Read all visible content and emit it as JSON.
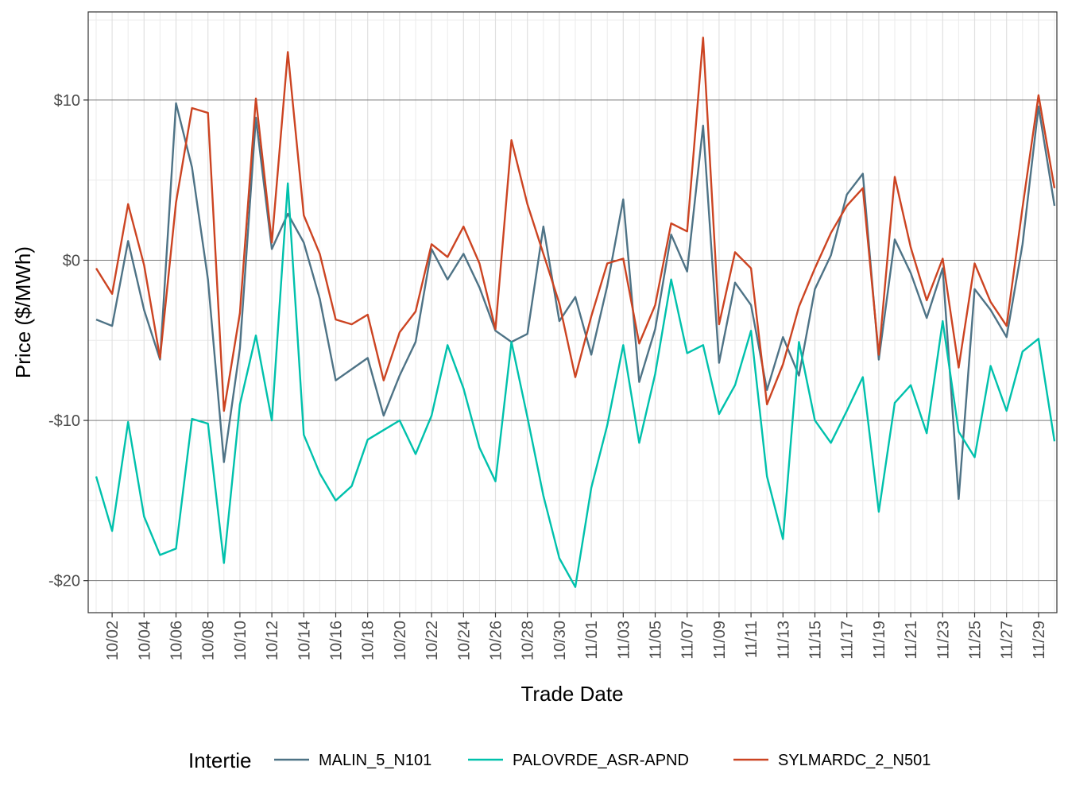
{
  "chart_data": {
    "type": "line",
    "title": "",
    "xlabel": "Trade Date",
    "ylabel": "Price ($/MWh)",
    "ylim": [
      -22,
      15.5
    ],
    "y_ticks": [
      10,
      0,
      -10,
      -20
    ],
    "y_tick_labels": [
      "$10",
      "$0",
      "-$10",
      "-$20"
    ],
    "x_start_day": 1,
    "x_tick_days": [
      2,
      4,
      6,
      8,
      10,
      12,
      14,
      16,
      18,
      20,
      22,
      24,
      26,
      28,
      30,
      32,
      34,
      36,
      38,
      40,
      42,
      44,
      46,
      48,
      50,
      52,
      54,
      56,
      58,
      60
    ],
    "x_tick_labels": [
      "10/02",
      "10/04",
      "10/06",
      "10/08",
      "10/10",
      "10/12",
      "10/14",
      "10/16",
      "10/18",
      "10/20",
      "10/22",
      "10/24",
      "10/26",
      "10/28",
      "10/30",
      "11/01",
      "11/03",
      "11/05",
      "11/07",
      "11/09",
      "11/11",
      "11/13",
      "11/15",
      "11/17",
      "11/19",
      "11/21",
      "11/23",
      "11/25",
      "11/27",
      "11/29"
    ],
    "grid": true,
    "legend": {
      "title": "Intertie",
      "position": "bottom"
    },
    "series": [
      {
        "name": "MALIN_5_N101",
        "color": "#4E7386",
        "values": [
          -3.7,
          -4.1,
          1.2,
          -3.1,
          -6.2,
          9.8,
          5.8,
          -1.2,
          -12.6,
          -5.5,
          8.9,
          0.7,
          2.9,
          1.1,
          -2.4,
          -7.5,
          -6.8,
          -6.1,
          -9.7,
          -7.2,
          -5.1,
          0.7,
          -1.2,
          0.4,
          -1.7,
          -4.4,
          -5.1,
          -4.6,
          2.1,
          -3.8,
          -2.3,
          -5.9,
          -1.6,
          3.8,
          -7.6,
          -4.3,
          1.6,
          -0.7,
          8.4,
          -6.4,
          -1.4,
          -2.8,
          -8.1,
          -4.8,
          -7.2,
          -1.8,
          0.3,
          4.1,
          5.4,
          -6.2,
          1.3,
          -0.8,
          -3.6,
          -0.5,
          -14.9,
          -1.8,
          -3.1,
          -4.8,
          1.0,
          9.6,
          3.4
        ]
      },
      {
        "name": "PALOVRDE_ASR-APND",
        "color": "#00C1AC",
        "values": [
          -13.5,
          -16.9,
          -10.1,
          -16.0,
          -18.4,
          -18.0,
          -9.9,
          -10.2,
          -18.9,
          -9.0,
          -4.7,
          -10.0,
          4.8,
          -10.9,
          -13.3,
          -15.0,
          -14.1,
          -11.2,
          -10.6,
          -10.0,
          -12.1,
          -9.7,
          -5.3,
          -8.0,
          -11.7,
          -13.8,
          -5.1,
          -9.8,
          -14.7,
          -18.6,
          -20.4,
          -14.2,
          -10.3,
          -5.3,
          -11.4,
          -7.1,
          -1.2,
          -5.8,
          -5.3,
          -9.6,
          -7.8,
          -4.4,
          -13.5,
          -17.4,
          -5.1,
          -10.0,
          -11.4,
          -9.4,
          -7.3,
          -15.7,
          -8.9,
          -7.8,
          -10.8,
          -3.8,
          -10.7,
          -12.3,
          -6.6,
          -9.4,
          -5.7,
          -4.9,
          -11.3
        ]
      },
      {
        "name": "SYLMARDC_2_N501",
        "color": "#CC4422",
        "values": [
          -0.5,
          -2.1,
          3.5,
          -0.3,
          -6.1,
          3.6,
          9.5,
          9.2,
          -9.4,
          -3.3,
          10.1,
          1.1,
          13.0,
          2.8,
          0.4,
          -3.7,
          -4.0,
          -3.4,
          -7.5,
          -4.5,
          -3.2,
          1.0,
          0.2,
          2.1,
          -0.2,
          -4.3,
          7.5,
          3.5,
          0.4,
          -2.7,
          -7.3,
          -3.5,
          -0.2,
          0.1,
          -5.2,
          -2.8,
          2.3,
          1.8,
          13.9,
          -4.0,
          0.5,
          -0.5,
          -9.0,
          -6.5,
          -2.9,
          -0.5,
          1.7,
          3.4,
          4.5,
          -5.9,
          5.2,
          0.8,
          -2.5,
          0.1,
          -6.7,
          -0.2,
          -2.6,
          -4.1,
          3.3,
          10.3,
          4.5
        ]
      }
    ]
  }
}
